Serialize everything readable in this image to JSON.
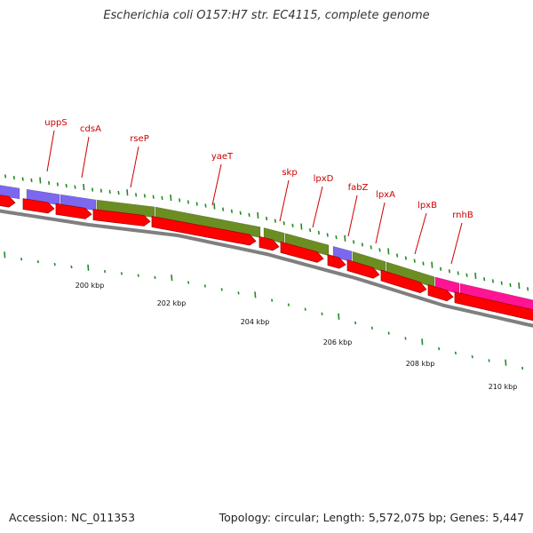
{
  "header": {
    "title": "Escherichia coli O157:H7 str. EC4115, complete genome"
  },
  "footer": {
    "accession": "Accession: NC_011353",
    "summary": "Topology: circular; Length: 5,572,075 bp; Genes: 5,447"
  },
  "map": {
    "colors": {
      "backbone": "#808080",
      "cds": "#ff0000",
      "label": "#cc0000",
      "tick": "#228b22",
      "purple": "#7b68ee",
      "olive": "#6b8e23",
      "magenta": "#ff1493"
    },
    "gene_labels": [
      "uppS",
      "cdsA",
      "rseP",
      "yaeT",
      "skp",
      "lpxD",
      "fabZ",
      "lpxA",
      "lpxB",
      "rnhB"
    ],
    "kbp_labels": [
      "200 kbp",
      "202 kbp",
      "204 kbp",
      "206 kbp",
      "208 kbp",
      "210 kbp"
    ]
  }
}
